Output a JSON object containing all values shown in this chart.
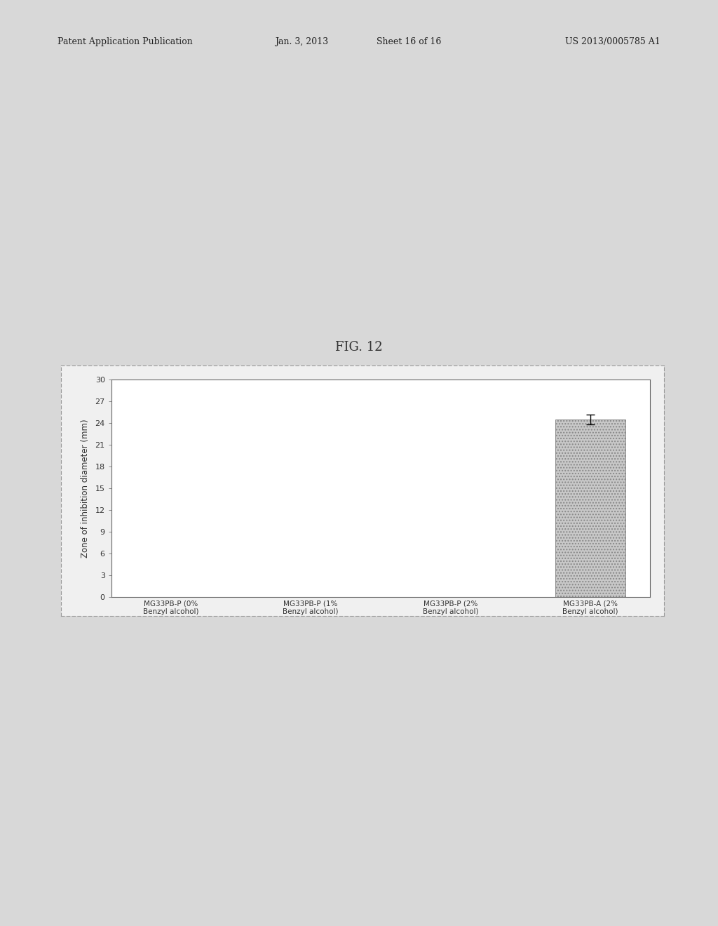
{
  "fig_label": "FIG. 12",
  "patent_header_left": "Patent Application Publication",
  "patent_header_date": "Jan. 3, 2013",
  "patent_header_sheet": "Sheet 16 of 16",
  "patent_header_right": "US 2013/0005785 A1",
  "categories": [
    "MG33PB-P (0%\nBenzyl alcohol)",
    "MG33PB-P (1%\nBenzyl alcohol)",
    "MG33PB-P (2%\nBenzyl alcohol)",
    "MG33PB-A (2%\nBenzyl alcohol)"
  ],
  "values": [
    0,
    0,
    0,
    24.5
  ],
  "error_bars": [
    0,
    0,
    0,
    0.65
  ],
  "ylabel": "Zone of inhibition diameter (mm)",
  "ylim": [
    0,
    30
  ],
  "yticks": [
    0,
    3,
    6,
    9,
    12,
    15,
    18,
    21,
    24,
    27,
    30
  ],
  "bar_color": "#c8c8c8",
  "bar_hatch": "....",
  "bar_edge_color": "#888888",
  "plot_bg_color": "#ffffff",
  "page_bg_color": "#d8d8d8",
  "chart_box_bg": "#f0f0f0",
  "title_fontsize": 13,
  "axis_fontsize": 8.5,
  "tick_fontsize": 8,
  "xlabel_fontsize": 7.5,
  "header_fontsize": 9
}
